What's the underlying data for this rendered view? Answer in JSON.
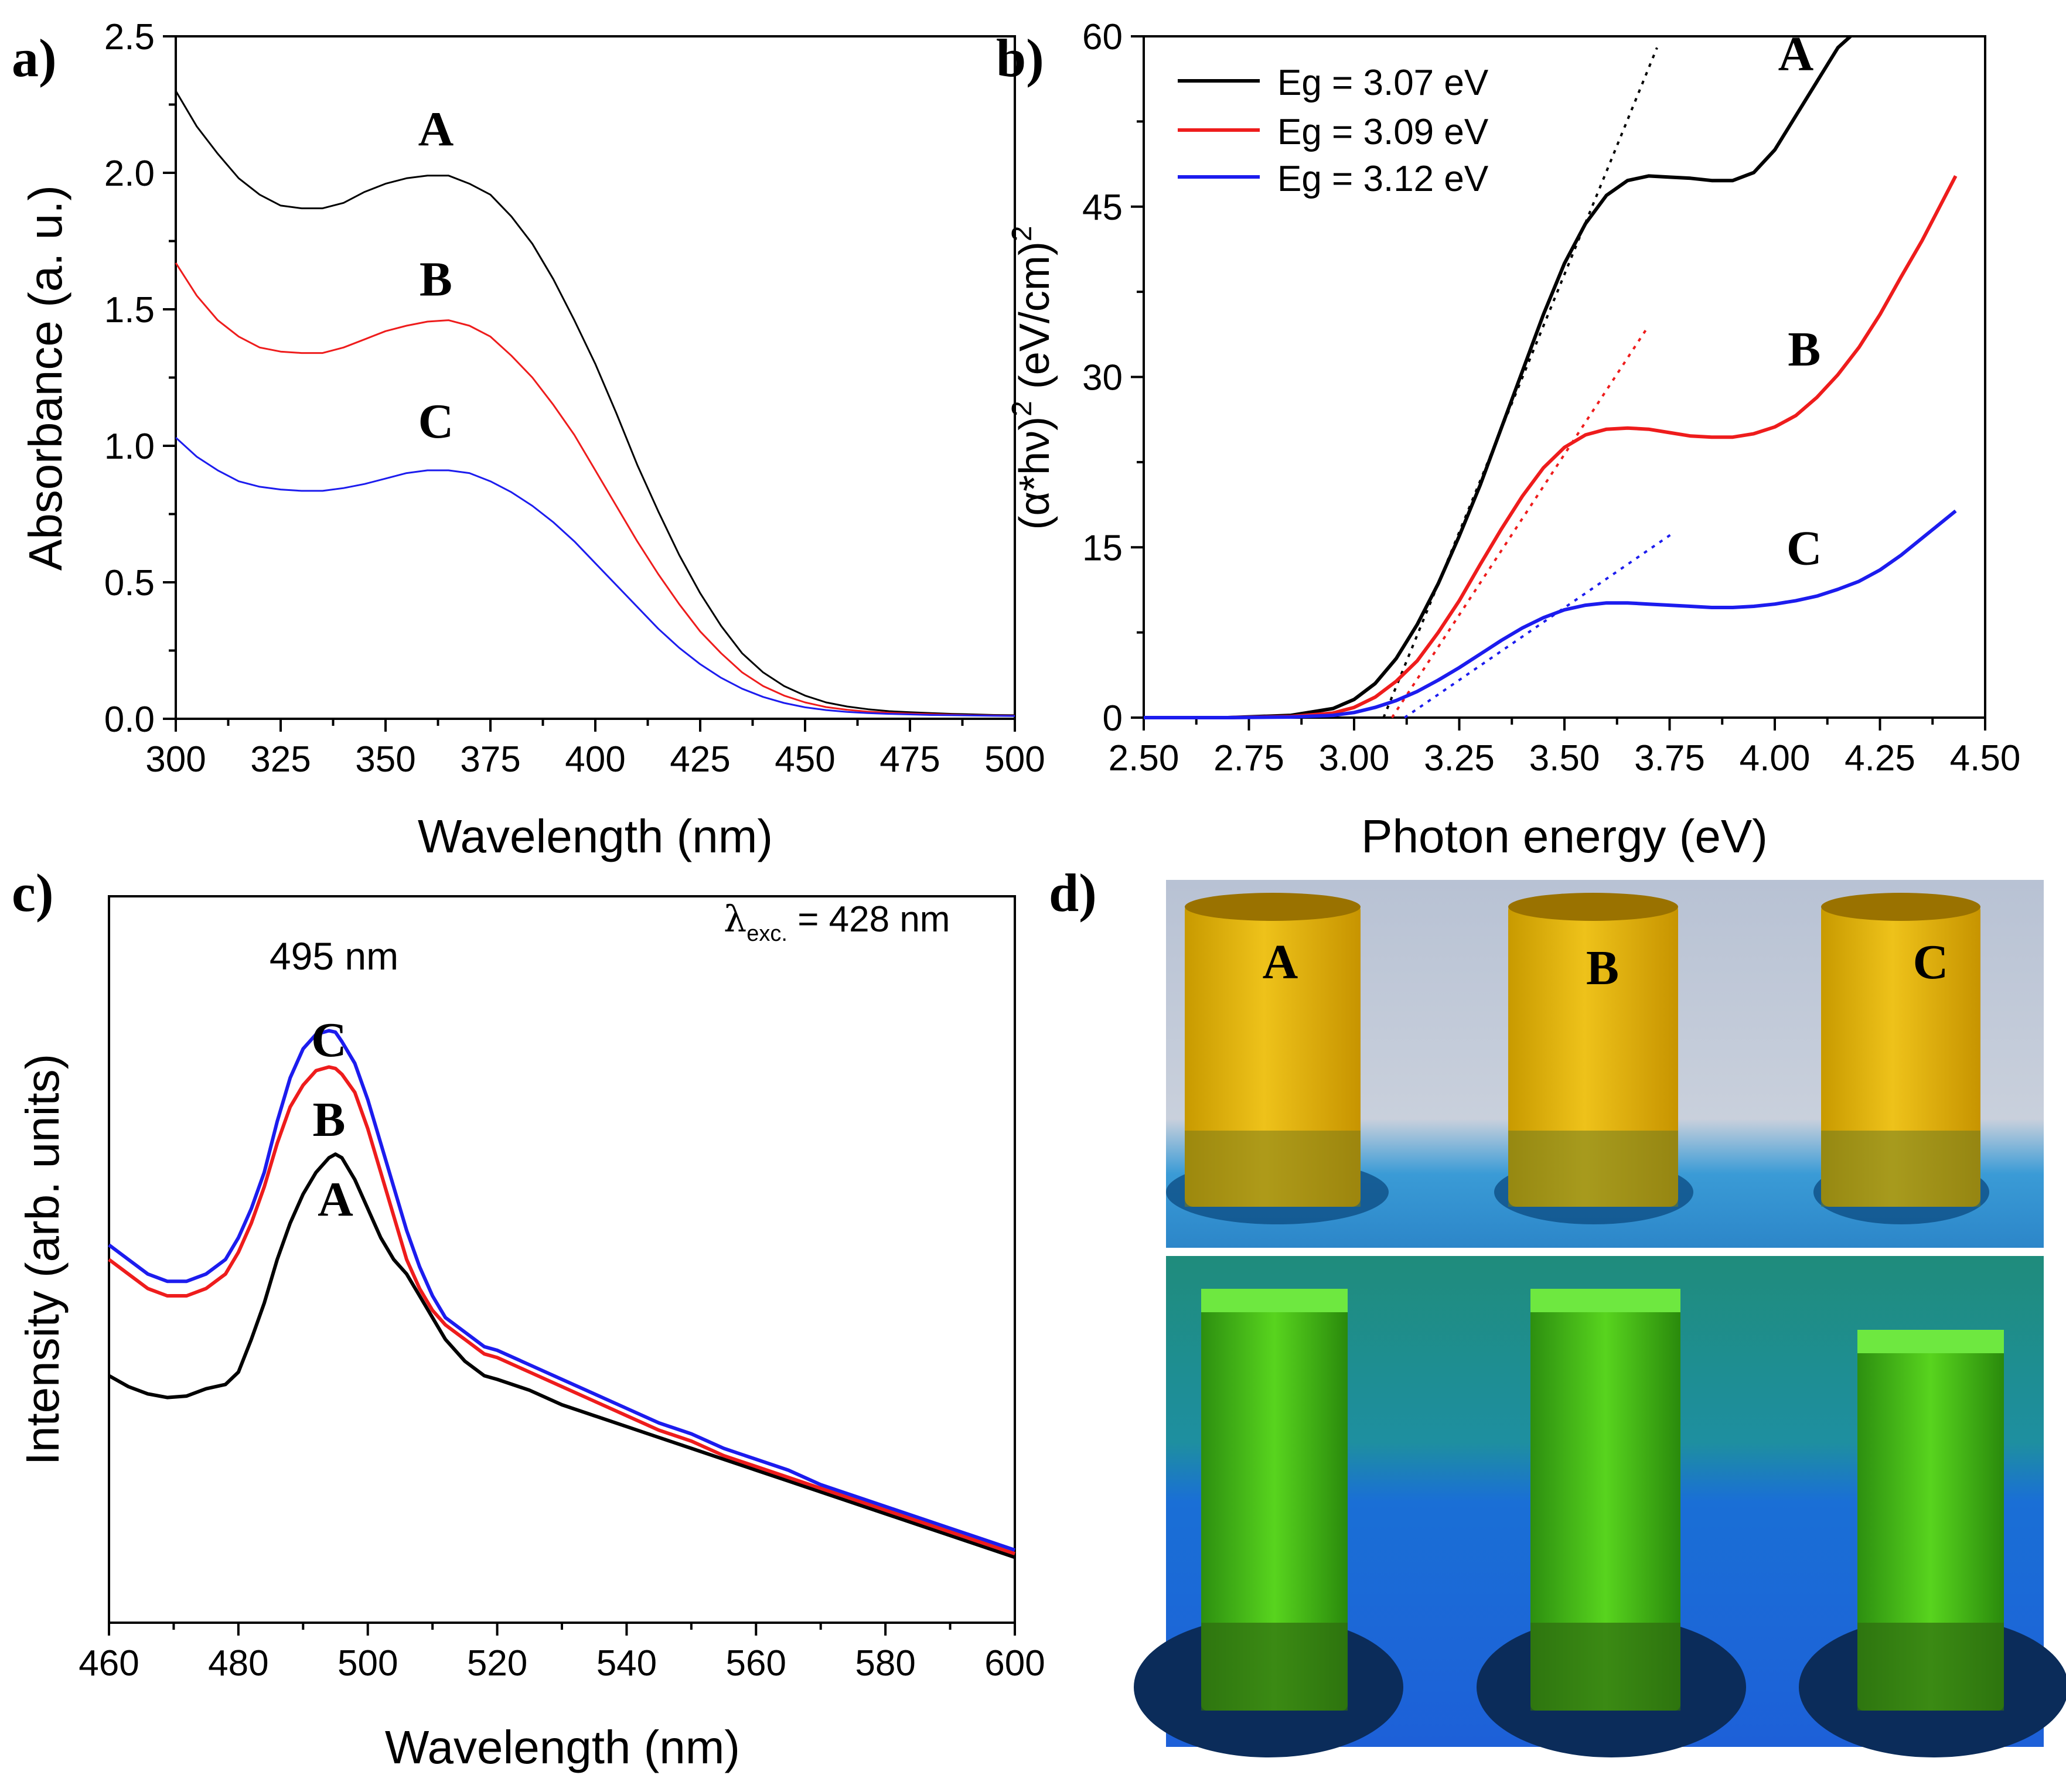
{
  "panel_labels": {
    "a": "a)",
    "b": "b)",
    "c": "c)",
    "d": "d)"
  },
  "colors": {
    "A": "#000000",
    "B": "#ee1c1c",
    "C": "#1c1cee"
  },
  "chart_data": [
    {
      "id": "a",
      "type": "line",
      "xlabel": "Wavelength (nm)",
      "ylabel": "Absorbance (a. u.)",
      "xlim": [
        300,
        500
      ],
      "ylim": [
        0,
        2.5
      ],
      "xticks": [
        300,
        325,
        350,
        375,
        400,
        425,
        450,
        475,
        500
      ],
      "xtick_labels": [
        "300",
        "325",
        "350",
        "375",
        "400",
        "425",
        "450",
        "475",
        "500"
      ],
      "yticks": [
        0,
        0.5,
        1,
        1.5,
        2,
        2.5
      ],
      "ytick_labels": [
        "0.0",
        "0.5",
        "1.0",
        "1.5",
        "2.0",
        "2.5"
      ],
      "series": [
        {
          "name": "A",
          "label_pos": [
            362,
            2.1
          ],
          "x": [
            300,
            305,
            310,
            315,
            320,
            325,
            330,
            335,
            340,
            345,
            350,
            355,
            360,
            365,
            370,
            375,
            380,
            385,
            390,
            395,
            400,
            405,
            410,
            415,
            420,
            425,
            430,
            435,
            440,
            445,
            450,
            455,
            460,
            465,
            470,
            475,
            480,
            485,
            490,
            495,
            500
          ],
          "y": [
            2.3,
            2.17,
            2.07,
            1.98,
            1.92,
            1.88,
            1.87,
            1.87,
            1.89,
            1.93,
            1.96,
            1.98,
            1.99,
            1.99,
            1.96,
            1.92,
            1.84,
            1.74,
            1.61,
            1.46,
            1.3,
            1.12,
            0.93,
            0.76,
            0.6,
            0.46,
            0.34,
            0.24,
            0.17,
            0.12,
            0.085,
            0.06,
            0.045,
            0.035,
            0.028,
            0.024,
            0.021,
            0.018,
            0.016,
            0.014,
            0.013
          ]
        },
        {
          "name": "B",
          "label_pos": [
            362,
            1.55
          ],
          "x": [
            300,
            305,
            310,
            315,
            320,
            325,
            330,
            335,
            340,
            345,
            350,
            355,
            360,
            365,
            370,
            375,
            380,
            385,
            390,
            395,
            400,
            405,
            410,
            415,
            420,
            425,
            430,
            435,
            440,
            445,
            450,
            455,
            460,
            465,
            470,
            475,
            480,
            485,
            490,
            495,
            500
          ],
          "y": [
            1.67,
            1.55,
            1.46,
            1.4,
            1.36,
            1.345,
            1.34,
            1.34,
            1.36,
            1.39,
            1.42,
            1.44,
            1.455,
            1.46,
            1.44,
            1.4,
            1.33,
            1.25,
            1.15,
            1.04,
            0.91,
            0.78,
            0.65,
            0.53,
            0.42,
            0.32,
            0.24,
            0.17,
            0.12,
            0.085,
            0.06,
            0.043,
            0.033,
            0.026,
            0.022,
            0.019,
            0.017,
            0.015,
            0.013,
            0.012,
            0.011
          ]
        },
        {
          "name": "C",
          "label_pos": [
            362,
            1.03
          ],
          "x": [
            300,
            305,
            310,
            315,
            320,
            325,
            330,
            335,
            340,
            345,
            350,
            355,
            360,
            365,
            370,
            375,
            380,
            385,
            390,
            395,
            400,
            405,
            410,
            415,
            420,
            425,
            430,
            435,
            440,
            445,
            450,
            455,
            460,
            465,
            470,
            475,
            480,
            485,
            490,
            495,
            500
          ],
          "y": [
            1.03,
            0.96,
            0.91,
            0.87,
            0.85,
            0.84,
            0.835,
            0.835,
            0.845,
            0.86,
            0.88,
            0.9,
            0.91,
            0.91,
            0.9,
            0.87,
            0.83,
            0.78,
            0.72,
            0.65,
            0.57,
            0.49,
            0.41,
            0.33,
            0.26,
            0.2,
            0.15,
            0.11,
            0.08,
            0.058,
            0.042,
            0.032,
            0.025,
            0.021,
            0.018,
            0.016,
            0.014,
            0.013,
            0.012,
            0.011,
            0.01
          ]
        }
      ]
    },
    {
      "id": "b",
      "type": "line",
      "xlabel": "Photon energy (eV)",
      "ylabel": "(α*hν)² (eV/cm)²",
      "ylabel_base": "(α*hν)",
      "ylabel_sup1": "2",
      "ylabel_mid": " (eV/cm)",
      "ylabel_sup2": "2",
      "xlim": [
        2.5,
        4.5
      ],
      "ylim": [
        0,
        60
      ],
      "xticks": [
        2.5,
        2.75,
        3,
        3.25,
        3.5,
        3.75,
        4,
        4.25,
        4.5
      ],
      "xtick_labels": [
        "2.50",
        "2.75",
        "3.00",
        "3.25",
        "3.50",
        "3.75",
        "4.00",
        "4.25",
        "4.50"
      ],
      "yticks": [
        0,
        15,
        30,
        45,
        60
      ],
      "ytick_labels": [
        "0",
        "15",
        "30",
        "45",
        "60"
      ],
      "legend": [
        "Eg = 3.07 eV",
        "Eg = 3.09 eV",
        "Eg = 3.12 eV"
      ],
      "legend_position": "top-left",
      "tangent_lines": [
        {
          "series": "A",
          "x": [
            3.07,
            3.72
          ],
          "y": [
            0,
            59
          ]
        },
        {
          "series": "B",
          "x": [
            3.09,
            3.7
          ],
          "y": [
            0,
            34.5
          ]
        },
        {
          "series": "C",
          "x": [
            3.12,
            3.76
          ],
          "y": [
            0,
            16.3
          ]
        }
      ],
      "series": [
        {
          "name": "A",
          "label_pos": [
            4.05,
            57
          ],
          "x": [
            2.5,
            2.7,
            2.85,
            2.95,
            3.0,
            3.05,
            3.1,
            3.15,
            3.2,
            3.25,
            3.3,
            3.35,
            3.4,
            3.45,
            3.5,
            3.55,
            3.6,
            3.65,
            3.7,
            3.75,
            3.8,
            3.85,
            3.9,
            3.95,
            4.0,
            4.05,
            4.1,
            4.15,
            4.18
          ],
          "y": [
            0,
            0,
            0.2,
            0.8,
            1.6,
            3.0,
            5.2,
            8.2,
            11.8,
            16.0,
            20.5,
            25.5,
            30.5,
            35.5,
            40.0,
            43.5,
            46.0,
            47.3,
            47.7,
            47.6,
            47.5,
            47.3,
            47.3,
            48.0,
            50.0,
            53.0,
            56.0,
            59.0,
            60.0
          ]
        },
        {
          "name": "B",
          "label_pos": [
            4.07,
            31
          ],
          "x": [
            2.5,
            2.7,
            2.85,
            2.95,
            3.0,
            3.05,
            3.1,
            3.15,
            3.2,
            3.25,
            3.3,
            3.35,
            3.4,
            3.45,
            3.5,
            3.55,
            3.6,
            3.65,
            3.7,
            3.75,
            3.8,
            3.85,
            3.9,
            3.95,
            4.0,
            4.05,
            4.1,
            4.15,
            4.2,
            4.25,
            4.3,
            4.35,
            4.43
          ],
          "y": [
            0,
            0,
            0.1,
            0.4,
            0.9,
            1.8,
            3.2,
            5.0,
            7.5,
            10.3,
            13.5,
            16.6,
            19.5,
            22.0,
            23.8,
            24.9,
            25.4,
            25.5,
            25.4,
            25.1,
            24.8,
            24.7,
            24.7,
            25.0,
            25.6,
            26.6,
            28.2,
            30.2,
            32.6,
            35.5,
            38.8,
            42.0,
            47.7
          ]
        },
        {
          "name": "C",
          "label_pos": [
            4.07,
            13.5
          ],
          "x": [
            2.5,
            2.7,
            2.85,
            2.95,
            3.0,
            3.05,
            3.1,
            3.15,
            3.2,
            3.25,
            3.3,
            3.35,
            3.4,
            3.45,
            3.5,
            3.55,
            3.6,
            3.65,
            3.7,
            3.75,
            3.8,
            3.85,
            3.9,
            3.95,
            4.0,
            4.05,
            4.1,
            4.15,
            4.2,
            4.25,
            4.3,
            4.35,
            4.43
          ],
          "y": [
            0,
            0,
            0.05,
            0.2,
            0.45,
            0.9,
            1.5,
            2.3,
            3.3,
            4.4,
            5.6,
            6.8,
            7.9,
            8.8,
            9.5,
            9.9,
            10.1,
            10.1,
            10.0,
            9.9,
            9.8,
            9.7,
            9.7,
            9.8,
            10.0,
            10.3,
            10.7,
            11.3,
            12.0,
            13.0,
            14.3,
            15.8,
            18.2
          ]
        }
      ]
    },
    {
      "id": "c",
      "type": "line",
      "xlabel": "Wavelength (nm)",
      "ylabel": "Intensity (arb. units)",
      "xlim": [
        460,
        600
      ],
      "ylim": [
        0,
        1
      ],
      "xticks": [
        460,
        480,
        500,
        520,
        540,
        560,
        580,
        600
      ],
      "xtick_labels": [
        "460",
        "480",
        "500",
        "520",
        "540",
        "560",
        "580",
        "600"
      ],
      "peak_label": "495 nm",
      "excitation_symbol": "λ",
      "excitation_sub": "exc.",
      "excitation_value": " = 428 nm",
      "series": [
        {
          "name": "A",
          "label_pos": [
            495,
            0.56
          ],
          "x": [
            460,
            463,
            466,
            469,
            472,
            475,
            478,
            480,
            482,
            484,
            486,
            488,
            490,
            492,
            494,
            495,
            496,
            498,
            500,
            502,
            504,
            506,
            508,
            510,
            512,
            515,
            518,
            520,
            525,
            530,
            535,
            540,
            545,
            550,
            555,
            560,
            565,
            570,
            575,
            580,
            585,
            590,
            595,
            600
          ],
          "y": [
            0.34,
            0.325,
            0.315,
            0.31,
            0.312,
            0.322,
            0.328,
            0.345,
            0.39,
            0.44,
            0.5,
            0.55,
            0.59,
            0.62,
            0.64,
            0.645,
            0.64,
            0.61,
            0.57,
            0.53,
            0.5,
            0.48,
            0.45,
            0.42,
            0.39,
            0.36,
            0.34,
            0.335,
            0.32,
            0.3,
            0.285,
            0.27,
            0.255,
            0.24,
            0.225,
            0.21,
            0.195,
            0.18,
            0.165,
            0.15,
            0.135,
            0.12,
            0.105,
            0.09
          ]
        },
        {
          "name": "B",
          "label_pos": [
            494,
            0.67
          ],
          "x": [
            460,
            463,
            466,
            469,
            472,
            475,
            478,
            480,
            482,
            484,
            486,
            488,
            490,
            492,
            494,
            495,
            496,
            498,
            500,
            502,
            504,
            506,
            508,
            510,
            512,
            515,
            518,
            520,
            525,
            530,
            535,
            540,
            545,
            550,
            555,
            560,
            565,
            570,
            575,
            580,
            585,
            590,
            595,
            600
          ],
          "y": [
            0.5,
            0.48,
            0.46,
            0.45,
            0.45,
            0.46,
            0.48,
            0.51,
            0.55,
            0.6,
            0.66,
            0.71,
            0.74,
            0.76,
            0.765,
            0.763,
            0.755,
            0.73,
            0.68,
            0.62,
            0.56,
            0.5,
            0.46,
            0.43,
            0.41,
            0.39,
            0.37,
            0.365,
            0.345,
            0.325,
            0.305,
            0.285,
            0.265,
            0.25,
            0.23,
            0.215,
            0.2,
            0.185,
            0.17,
            0.155,
            0.14,
            0.125,
            0.11,
            0.095
          ]
        },
        {
          "name": "C",
          "label_pos": [
            494,
            0.78
          ],
          "x": [
            460,
            463,
            466,
            469,
            472,
            475,
            478,
            480,
            482,
            484,
            486,
            488,
            490,
            492,
            494,
            495,
            496,
            498,
            500,
            502,
            504,
            506,
            508,
            510,
            512,
            515,
            518,
            520,
            525,
            530,
            535,
            540,
            545,
            550,
            555,
            560,
            565,
            570,
            575,
            580,
            585,
            590,
            595,
            600
          ],
          "y": [
            0.52,
            0.5,
            0.48,
            0.47,
            0.47,
            0.48,
            0.5,
            0.53,
            0.57,
            0.62,
            0.69,
            0.75,
            0.79,
            0.81,
            0.815,
            0.813,
            0.8,
            0.77,
            0.72,
            0.66,
            0.6,
            0.54,
            0.49,
            0.45,
            0.42,
            0.4,
            0.38,
            0.375,
            0.355,
            0.335,
            0.315,
            0.295,
            0.275,
            0.26,
            0.24,
            0.225,
            0.21,
            0.19,
            0.175,
            0.16,
            0.145,
            0.13,
            0.115,
            0.1
          ]
        }
      ]
    }
  ],
  "photos": {
    "top_labels": [
      "A",
      "B",
      "C"
    ],
    "description_alt": "vials under daylight and UV light"
  }
}
